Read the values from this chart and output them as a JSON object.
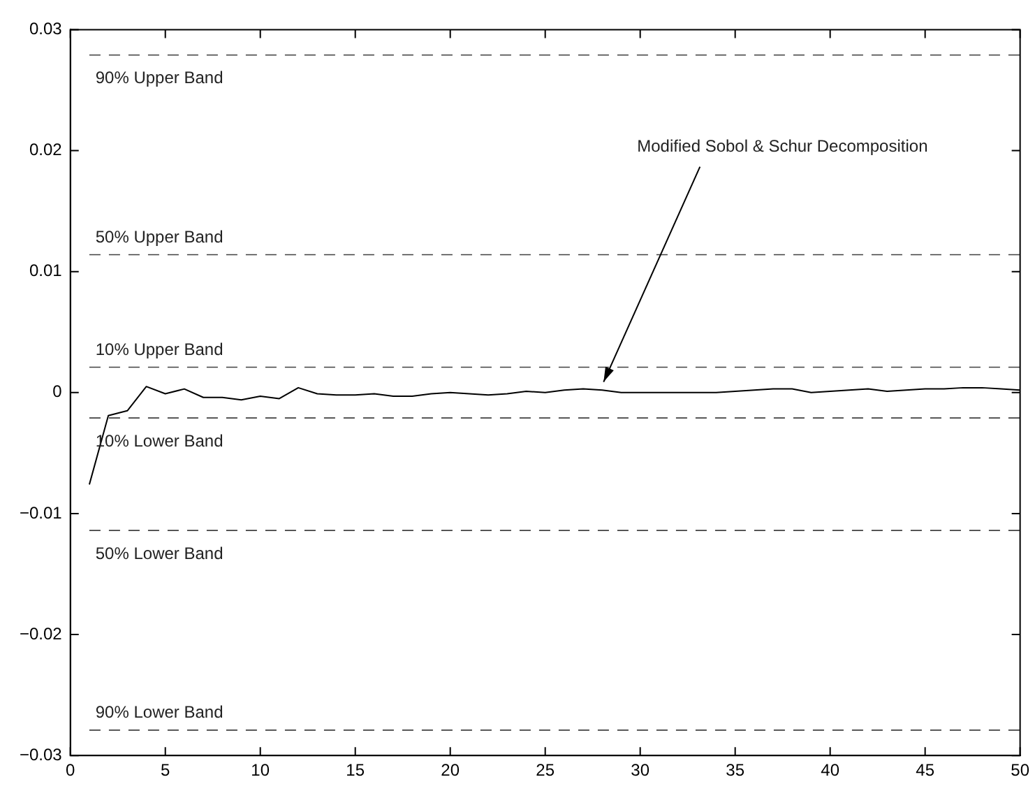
{
  "chart_data": {
    "type": "line",
    "x": [
      1,
      2,
      3,
      4,
      5,
      6,
      7,
      8,
      9,
      10,
      11,
      12,
      13,
      14,
      15,
      16,
      17,
      18,
      19,
      20,
      21,
      22,
      23,
      24,
      25,
      26,
      27,
      28,
      29,
      30,
      31,
      32,
      33,
      34,
      35,
      36,
      37,
      38,
      39,
      40,
      41,
      42,
      43,
      44,
      45,
      46,
      47,
      48,
      49,
      50
    ],
    "series": [
      {
        "color": "#000000",
        "values": [
          -0.0076,
          -0.0019,
          -0.0015,
          0.0005,
          -0.0001,
          0.0003,
          -0.0004,
          -0.0004,
          -0.0006,
          -0.0003,
          -0.0005,
          0.0004,
          -0.0001,
          -0.0002,
          -0.0002,
          -0.0001,
          -0.0003,
          -0.0003,
          -0.0001,
          0.0,
          -0.0001,
          -0.0002,
          -0.0001,
          0.0001,
          0.0,
          0.0002,
          0.0003,
          0.0002,
          0.0,
          0.0,
          0.0,
          0.0,
          0.0,
          0.0,
          0.0001,
          0.0002,
          0.0003,
          0.0003,
          0.0,
          0.0001,
          0.0002,
          0.0003,
          0.0001,
          0.0002,
          0.0003,
          0.0003,
          0.0004,
          0.0004,
          0.0003,
          0.0002
        ]
      }
    ],
    "xlim": [
      0,
      50
    ],
    "xticks": [
      0,
      5,
      10,
      15,
      20,
      25,
      30,
      35,
      40,
      45,
      50
    ],
    "ylim": [
      -0.03,
      0.03
    ],
    "yticks": [
      {
        "value": -0.03,
        "label": "−0.03"
      },
      {
        "value": -0.02,
        "label": "−0.02"
      },
      {
        "value": -0.01,
        "label": "−0.01"
      },
      0,
      0.01,
      0.02,
      0.03
    ],
    "ref_lines": [
      {
        "axis": "y",
        "value": 0.0279,
        "label": "90% Upper Band",
        "color": "#000000",
        "line_style": "dashed"
      },
      {
        "axis": "y",
        "value": 0.0114,
        "label": "50% Upper Band",
        "color": "#000000",
        "line_style": "dashed"
      },
      {
        "axis": "y",
        "value": 0.0021,
        "label": "10% Upper Band",
        "color": "#000000",
        "line_style": "dashed"
      },
      {
        "axis": "y",
        "value": -0.0021,
        "label": "10% Lower Band",
        "color": "#000000",
        "line_style": "dashed"
      },
      {
        "axis": "y",
        "value": -0.0114,
        "label": "50% Lower Band",
        "color": "#000000",
        "line_style": "dashed"
      },
      {
        "axis": "y",
        "value": -0.0279,
        "label": "90% Lower Band",
        "color": "#000000",
        "line_style": "dashed"
      }
    ],
    "annotations": [
      {
        "text": "Modified Sobol & Schur Decomposition",
        "x": 28,
        "y": 0.0003
      }
    ],
    "grid": false,
    "legend": false,
    "marker": "none",
    "line_style": "solid"
  }
}
